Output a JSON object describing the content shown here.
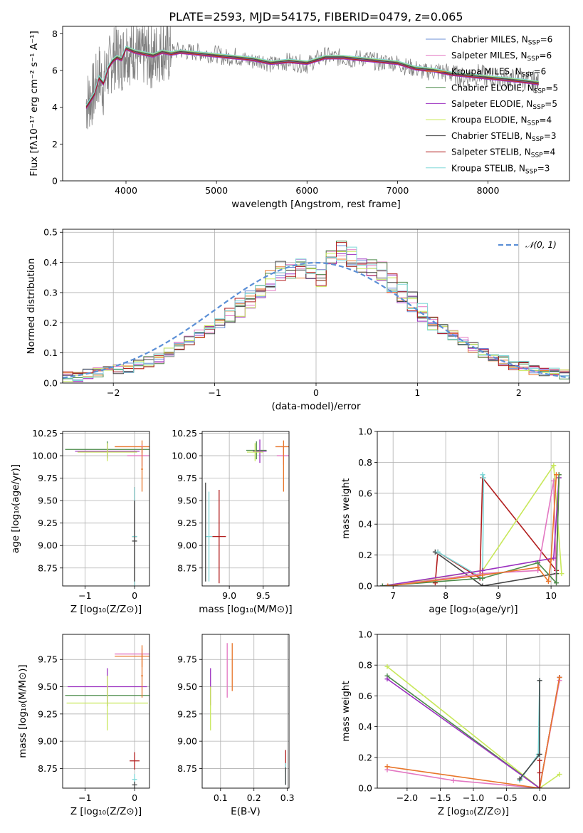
{
  "figure": {
    "title": "PLATE=2593, MJD=54175, FIBERID=0479, z=0.065"
  },
  "chart_data": [
    {
      "id": "spectrum",
      "type": "line",
      "xlabel": "wavelength [Angstrom, rest frame]",
      "ylabel": "Flux [fλ10⁻¹⁷ erg cm⁻² s⁻¹ A⁻¹]",
      "xlim": [
        3300,
        8900
      ],
      "ylim": [
        0,
        8.4
      ],
      "xticks": [
        4000,
        5000,
        6000,
        7000,
        8000
      ],
      "yticks": [
        0,
        2,
        4,
        6,
        8
      ],
      "grid": false,
      "legend_position": "right",
      "data_series": {
        "name": "data",
        "color": "#808080",
        "x": [
          3560,
          3600,
          3650,
          3700,
          3750,
          3800,
          3850,
          3900,
          3950,
          4000,
          4050,
          4100,
          4150,
          4200,
          4250,
          4300,
          4350,
          4400,
          4450,
          4500,
          4600,
          4700,
          4800,
          4900,
          5000,
          5100,
          5200,
          5300,
          5400,
          5500,
          5600,
          5700,
          5800,
          5900,
          6000,
          6100,
          6200,
          6300,
          6400,
          6500,
          6600,
          6700,
          6800,
          6900,
          7000,
          7100,
          7200,
          7300,
          7400,
          7500,
          7600,
          7700,
          7800,
          7900,
          8000,
          8100,
          8200,
          8300,
          8400,
          8500,
          8560
        ],
        "y": [
          4.2,
          4.5,
          4.8,
          5.8,
          5.2,
          6.0,
          6.6,
          6.9,
          6.5,
          7.3,
          6.9,
          7.2,
          6.6,
          6.9,
          6.8,
          6.7,
          7.0,
          7.2,
          7.0,
          7.0,
          7.1,
          7.0,
          7.0,
          6.9,
          6.9,
          6.7,
          6.8,
          6.6,
          6.5,
          6.6,
          6.3,
          6.4,
          6.5,
          6.4,
          6.3,
          6.6,
          6.8,
          6.7,
          6.7,
          6.6,
          6.7,
          6.6,
          6.4,
          6.5,
          6.4,
          6.2,
          6.1,
          5.9,
          6.0,
          5.9,
          5.8,
          5.6,
          5.7,
          5.8,
          5.6,
          5.5,
          5.6,
          5.5,
          5.5,
          5.4,
          5.3
        ]
      },
      "model": {
        "x": [
          3560,
          3600,
          3650,
          3700,
          3750,
          3800,
          3850,
          3900,
          3950,
          4000,
          4100,
          4200,
          4300,
          4400,
          4500,
          4600,
          4800,
          5000,
          5200,
          5400,
          5600,
          5800,
          6000,
          6200,
          6400,
          6600,
          6800,
          7000,
          7200,
          7400,
          7600,
          7800,
          8000,
          8200,
          8400,
          8560
        ],
        "y": [
          4.0,
          4.3,
          4.7,
          5.6,
          5.3,
          6.1,
          6.5,
          6.7,
          6.6,
          7.2,
          7.0,
          6.9,
          6.8,
          7.0,
          6.9,
          7.0,
          6.9,
          6.8,
          6.7,
          6.6,
          6.4,
          6.5,
          6.4,
          6.7,
          6.7,
          6.6,
          6.5,
          6.4,
          6.1,
          6.0,
          5.8,
          5.7,
          5.6,
          5.5,
          5.4,
          5.3
        ]
      },
      "series": [
        {
          "name": "Chabrier MILES, N<sub>SSP</sub>=6",
          "color": "#6b8fd6",
          "offset": 0.0
        },
        {
          "name": "Salpeter MILES, N<sub>SSP</sub>=6",
          "color": "#e377c2",
          "offset": 0.05
        },
        {
          "name": "Kroupa MILES, N<sub>SSP</sub>=6",
          "color": "#e8762b",
          "offset": -0.05
        },
        {
          "name": "Chabrier ELODIE, N<sub>SSP</sub>=5",
          "color": "#4c8b4a",
          "offset": 0.08
        },
        {
          "name": "Salpeter ELODIE, N<sub>SSP</sub>=5",
          "color": "#9b30c0",
          "offset": -0.08
        },
        {
          "name": "Kroupa ELODIE, N<sub>SSP</sub>=4",
          "color": "#c8e85a",
          "offset": 0.1
        },
        {
          "name": "Chabrier STELIB, N<sub>SSP</sub>=3",
          "color": "#444444",
          "offset": 0.03
        },
        {
          "name": "Salpeter STELIB, N<sub>SSP</sub>=4",
          "color": "#b21f1f",
          "offset": -0.03
        },
        {
          "name": "Kroupa STELIB, N<sub>SSP</sub>=3",
          "color": "#7fd8d8",
          "offset": 0.12
        }
      ]
    },
    {
      "id": "residuals",
      "type": "histogram",
      "xlabel": "(data-model)/error",
      "ylabel": "Normed distribution",
      "xlim": [
        -2.5,
        2.5
      ],
      "ylim": [
        0,
        0.51
      ],
      "xticks": [
        -2,
        -1,
        0,
        1,
        2
      ],
      "yticks": [
        0.0,
        0.1,
        0.2,
        0.3,
        0.4,
        0.5
      ],
      "grid": true,
      "legend": [
        {
          "name": "𝒩(0, 1)",
          "color": "#5b8fd6",
          "style": "dashed"
        }
      ],
      "legend_position": "top-right",
      "bin_edges_start": -2.5,
      "bin_width": 0.1,
      "base_heights": [
        0.02,
        0.02,
        0.03,
        0.035,
        0.04,
        0.045,
        0.05,
        0.06,
        0.07,
        0.08,
        0.1,
        0.12,
        0.14,
        0.16,
        0.18,
        0.2,
        0.22,
        0.25,
        0.28,
        0.31,
        0.34,
        0.37,
        0.36,
        0.38,
        0.37,
        0.35,
        0.41,
        0.44,
        0.42,
        0.39,
        0.38,
        0.37,
        0.33,
        0.3,
        0.27,
        0.24,
        0.21,
        0.18,
        0.16,
        0.14,
        0.12,
        0.1,
        0.09,
        0.075,
        0.06,
        0.055,
        0.045,
        0.04,
        0.035,
        0.03
      ],
      "colors": [
        "#6b8fd6",
        "#e377c2",
        "#e8762b",
        "#4c8b4a",
        "#9b30c0",
        "#c8e85a",
        "#444444",
        "#b21f1f",
        "#7fd8d8"
      ]
    },
    {
      "id": "age-vs-Z",
      "type": "errorbar",
      "xlabel": "Z [log₁₀(Z/Z⊙)]",
      "ylabel": "age  [log₁₀(age/yr)]",
      "xlim": [
        -1.45,
        0.3
      ],
      "ylim": [
        8.55,
        10.27
      ],
      "xticks": [
        -1,
        0
      ],
      "yticks": [
        8.75,
        9.0,
        9.25,
        9.5,
        9.75,
        10.0,
        10.25
      ],
      "grid": true,
      "points": [
        {
          "x": -0.55,
          "y": 10.07,
          "xerr": 0.85,
          "yerr": 0.09,
          "color": "#4c8b4a"
        },
        {
          "x": -0.55,
          "y": 10.05,
          "xerr": 0.65,
          "yerr": 0.08,
          "color": "#9b30c0"
        },
        {
          "x": -0.55,
          "y": 10.04,
          "xerr": 0.6,
          "yerr": 0.1,
          "color": "#c8e85a"
        },
        {
          "x": 0.15,
          "y": 10.1,
          "xerr": 0.55,
          "yerr": 0.07,
          "color": "#e8762b"
        },
        {
          "x": 0.15,
          "y": 10.0,
          "xerr": 0.3,
          "yerr": 0.12,
          "color": "#e377c2"
        },
        {
          "x": 0.15,
          "y": 9.85,
          "xerr": 0.02,
          "yerr": 0.25,
          "color": "#e8762b"
        },
        {
          "x": 0.0,
          "y": 9.1,
          "xerr": 0.05,
          "yerr": 0.55,
          "color": "#b21f1f"
        },
        {
          "x": 0.0,
          "y": 9.1,
          "xerr": 0.05,
          "yerr": 0.55,
          "color": "#7fd8d8"
        },
        {
          "x": 0.0,
          "y": 9.05,
          "xerr": 0.05,
          "yerr": 0.45,
          "color": "#444444"
        }
      ]
    },
    {
      "id": "age-vs-mass",
      "type": "errorbar",
      "xlabel": "mass [log₁₀(M/M⊙)]",
      "ylabel": "",
      "xlim": [
        8.6,
        9.88
      ],
      "ylim": [
        8.55,
        10.27
      ],
      "xticks": [
        9.0,
        9.5
      ],
      "yticks": [
        8.75,
        9.0,
        9.25,
        9.5,
        9.75,
        10.0,
        10.25
      ],
      "grid": true,
      "points": [
        {
          "x": 9.4,
          "y": 10.06,
          "xerr": 0.15,
          "yerr": 0.1,
          "color": "#4c8b4a"
        },
        {
          "x": 9.45,
          "y": 10.05,
          "xerr": 0.1,
          "yerr": 0.13,
          "color": "#9b30c0"
        },
        {
          "x": 9.38,
          "y": 10.04,
          "xerr": 0.12,
          "yerr": 0.1,
          "color": "#c8e85a"
        },
        {
          "x": 9.8,
          "y": 10.1,
          "xerr": 0.12,
          "yerr": 0.07,
          "color": "#e8762b"
        },
        {
          "x": 9.8,
          "y": 10.0,
          "xerr": 0.1,
          "yerr": 0.1,
          "color": "#e377c2"
        },
        {
          "x": 9.8,
          "y": 9.85,
          "xerr": 0.0,
          "yerr": 0.25,
          "color": "#e8762b"
        },
        {
          "x": 8.85,
          "y": 9.1,
          "xerr": 0.1,
          "yerr": 0.52,
          "color": "#b21f1f"
        },
        {
          "x": 8.7,
          "y": 9.1,
          "xerr": 0.05,
          "yerr": 0.5,
          "color": "#7fd8d8"
        },
        {
          "x": 8.65,
          "y": 9.15,
          "xerr": 0.0,
          "yerr": 0.55,
          "color": "#444444"
        }
      ]
    },
    {
      "id": "weight-vs-age",
      "type": "line",
      "xlabel": "age  [log₁₀(age/yr)]",
      "ylabel": "mass weight",
      "xlim": [
        6.7,
        10.35
      ],
      "ylim": [
        0,
        1.0
      ],
      "xticks": [
        7,
        8,
        9,
        10
      ],
      "yticks": [
        0.0,
        0.2,
        0.4,
        0.6,
        0.8,
        1.0
      ],
      "grid": true,
      "series": [
        {
          "color": "#444444",
          "x": [
            7.8,
            8.7,
            10.1,
            10.15
          ],
          "y": [
            0.22,
            0.0,
            0.08,
            0.7
          ]
        },
        {
          "color": "#b21f1f",
          "x": [
            7.8,
            7.85,
            8.65,
            8.7,
            10.1,
            10.15
          ],
          "y": [
            0.02,
            0.22,
            0.05,
            0.7,
            0.1,
            0.72
          ]
        },
        {
          "color": "#7fd8d8",
          "x": [
            7.85,
            8.7,
            8.72,
            8.7
          ],
          "y": [
            0.22,
            0.05,
            0.7,
            0.72
          ]
        },
        {
          "color": "#c8e85a",
          "x": [
            6.9,
            8.7,
            10.05,
            10.2
          ],
          "y": [
            0.0,
            0.1,
            0.78,
            0.08
          ]
        },
        {
          "color": "#e377c2",
          "x": [
            6.9,
            8.7,
            9.75,
            10.05,
            10.1
          ],
          "y": [
            0.0,
            0.08,
            0.1,
            0.68,
            0.02
          ]
        },
        {
          "color": "#9b30c0",
          "x": [
            6.8,
            8.7,
            10.05,
            10.15
          ],
          "y": [
            0.0,
            0.1,
            0.18,
            0.7
          ]
        },
        {
          "color": "#4c8b4a",
          "x": [
            6.8,
            8.7,
            9.75,
            10.1,
            10.15
          ],
          "y": [
            0.0,
            0.05,
            0.15,
            0.02,
            0.72
          ]
        },
        {
          "color": "#e8762b",
          "x": [
            6.9,
            8.7,
            9.75,
            9.95,
            10.0,
            10.1
          ],
          "y": [
            0.0,
            0.07,
            0.12,
            0.03,
            0.17,
            0.72
          ]
        }
      ]
    },
    {
      "id": "mass-vs-Z",
      "type": "errorbar",
      "xlabel": "Z [log₁₀(Z/Z⊙)]",
      "ylabel": "mass [log₁₀(M/M⊙)]",
      "xlim": [
        -1.45,
        0.3
      ],
      "ylim": [
        8.57,
        9.98
      ],
      "xticks": [
        -1,
        0
      ],
      "yticks": [
        8.75,
        9.0,
        9.25,
        9.5,
        9.75
      ],
      "grid": true,
      "points": [
        {
          "x": -0.55,
          "y": 9.42,
          "xerr": 0.85,
          "yerr": 0.1,
          "color": "#4c8b4a"
        },
        {
          "x": -0.55,
          "y": 9.5,
          "xerr": 0.8,
          "yerr": 0.17,
          "color": "#9b30c0"
        },
        {
          "x": -0.55,
          "y": 9.35,
          "xerr": 0.82,
          "yerr": 0.25,
          "color": "#c8e85a"
        },
        {
          "x": 0.15,
          "y": 9.8,
          "xerr": 0.55,
          "yerr": 0.05,
          "color": "#e377c2"
        },
        {
          "x": 0.15,
          "y": 9.78,
          "xerr": 0.55,
          "yerr": 0.1,
          "color": "#e8762b"
        },
        {
          "x": 0.15,
          "y": 9.6,
          "xerr": 0.02,
          "yerr": 0.2,
          "color": "#e8762b"
        },
        {
          "x": 0.0,
          "y": 8.82,
          "xerr": 0.1,
          "yerr": 0.08,
          "color": "#b21f1f"
        },
        {
          "x": 0.0,
          "y": 8.65,
          "xerr": 0.05,
          "yerr": 0.05,
          "color": "#7fd8d8"
        },
        {
          "x": 0.0,
          "y": 8.6,
          "xerr": 0.05,
          "yerr": 0.03,
          "color": "#444444"
        }
      ]
    },
    {
      "id": "mass-vs-EBV",
      "type": "errorbar",
      "xlabel": "E(B-V)",
      "ylabel": "",
      "xlim": [
        0.045,
        0.305
      ],
      "ylim": [
        8.57,
        9.98
      ],
      "xticks": [
        0.1,
        0.2,
        0.3
      ],
      "yticks": [
        8.75,
        9.0,
        9.25,
        9.5,
        9.75
      ],
      "grid": true,
      "points": [
        {
          "x": 0.07,
          "y": 9.5,
          "xerr": 0.0,
          "yerr": 0.17,
          "color": "#9b30c0"
        },
        {
          "x": 0.07,
          "y": 9.3,
          "xerr": 0.0,
          "yerr": 0.2,
          "color": "#c8e85a"
        },
        {
          "x": 0.12,
          "y": 9.65,
          "xerr": 0.0,
          "yerr": 0.25,
          "color": "#e377c2"
        },
        {
          "x": 0.135,
          "y": 9.68,
          "xerr": 0.0,
          "yerr": 0.22,
          "color": "#e8762b"
        },
        {
          "x": 0.295,
          "y": 8.82,
          "xerr": 0.0,
          "yerr": 0.1,
          "color": "#b21f1f"
        },
        {
          "x": 0.295,
          "y": 8.7,
          "xerr": 0.0,
          "yerr": 0.1,
          "color": "#7fd8d8"
        },
        {
          "x": 0.295,
          "y": 8.68,
          "xerr": 0.0,
          "yerr": 0.08,
          "color": "#444444"
        }
      ]
    },
    {
      "id": "weight-vs-Z",
      "type": "line",
      "xlabel": "Z [log₁₀(Z/Z⊙)]",
      "ylabel": "mass weight",
      "xlim": [
        -2.45,
        0.45
      ],
      "ylim": [
        0,
        1.0
      ],
      "xticks": [
        -2.0,
        -1.5,
        -1.0,
        -0.5,
        0.0
      ],
      "yticks": [
        0.0,
        0.2,
        0.4,
        0.6,
        0.8,
        1.0
      ],
      "grid": true,
      "series": [
        {
          "color": "#c8e85a",
          "x": [
            -2.3,
            0.0,
            0.3
          ],
          "y": [
            0.79,
            0.0,
            0.09
          ]
        },
        {
          "color": "#4c8b4a",
          "x": [
            -2.3,
            0.0,
            0.3
          ],
          "y": [
            0.73,
            0.0,
            0.72
          ]
        },
        {
          "color": "#9b30c0",
          "x": [
            -2.3,
            0.0,
            0.3
          ],
          "y": [
            0.71,
            0.0,
            0.72
          ]
        },
        {
          "color": "#e377c2",
          "x": [
            -2.3,
            -1.3,
            0.0,
            0.3
          ],
          "y": [
            0.12,
            0.05,
            0.0,
            0.7
          ]
        },
        {
          "color": "#e8762b",
          "x": [
            -2.3,
            0.0,
            0.3
          ],
          "y": [
            0.14,
            0.0,
            0.72
          ]
        },
        {
          "color": "#7fd8d8",
          "x": [
            -0.3,
            -0.02,
            0.0,
            0.0
          ],
          "y": [
            0.05,
            0.22,
            0.7,
            0.0
          ]
        },
        {
          "color": "#444444",
          "x": [
            -0.3,
            0.0,
            0.0
          ],
          "y": [
            0.06,
            0.22,
            0.7
          ]
        },
        {
          "color": "#b21f1f",
          "x": [
            0.0,
            0.0,
            0.0
          ],
          "y": [
            0.0,
            0.18,
            0.1
          ]
        }
      ]
    }
  ]
}
